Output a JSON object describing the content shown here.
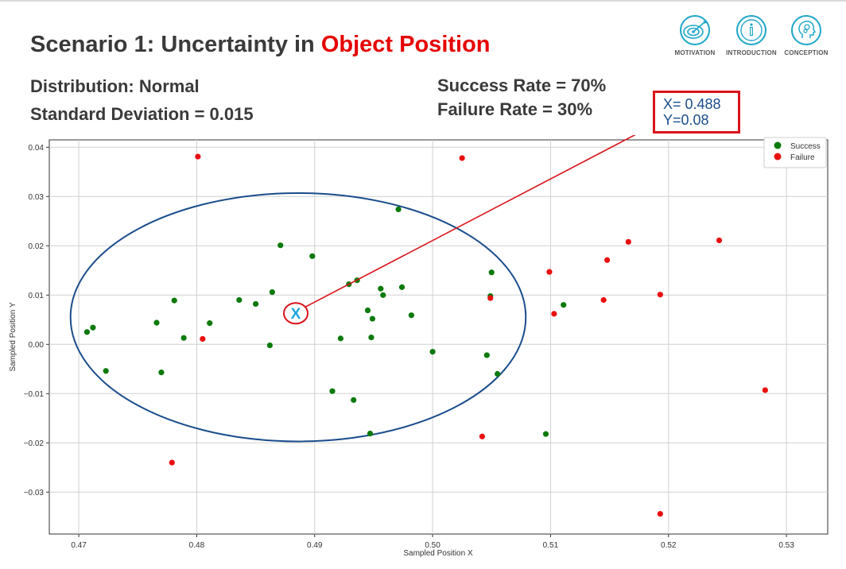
{
  "header": {
    "title_prefix": "Scenario 1: Uncertainty in ",
    "title_accent": "Object Position",
    "accent_color": "#e60000"
  },
  "info": {
    "distribution": "Distribution: Normal",
    "std_dev": "Standard Deviation = 0.015",
    "success_rate": "Success Rate = 70%",
    "failure_rate": "Failure Rate = 30%"
  },
  "nav": {
    "items": [
      {
        "label": "MOTIVATION",
        "icon": "target-icon"
      },
      {
        "label": "INTRODUCTION",
        "icon": "info-icon"
      },
      {
        "label": "CONCEPTION",
        "icon": "head-gears-icon"
      }
    ],
    "icon_color": "#1ea7c9"
  },
  "callout": {
    "x_text": "X= 0.488",
    "y_text": "Y=0.08",
    "marker": "X",
    "box_color": "#d9141b",
    "marker_color": "#1ea7e0"
  },
  "chart_data": {
    "type": "scatter",
    "xlabel": "Sampled Position X",
    "ylabel": "Sampled Position Y",
    "xlim": [
      0.4675,
      0.5335
    ],
    "ylim": [
      -0.0385,
      0.0415
    ],
    "xticks": [
      0.47,
      0.48,
      0.49,
      0.5,
      0.51,
      0.52,
      0.53
    ],
    "xtick_labels": [
      "0.47",
      "0.48",
      "0.49",
      "0.50",
      "0.51",
      "0.52",
      "0.53"
    ],
    "yticks": [
      0.04,
      0.03,
      0.02,
      0.01,
      0.0,
      -0.01,
      -0.02,
      -0.03
    ],
    "ytick_labels": [
      "0.04",
      "0.03",
      "0.02",
      "0.01",
      "0.00",
      "−0.01",
      "−0.02",
      "−0.03"
    ],
    "grid": true,
    "legend_position": "top-right",
    "ellipse": {
      "cx": 0.4886,
      "cy": 0.0055,
      "rx": 0.0193,
      "ry": 0.0252,
      "color": "#1a4d8c"
    },
    "series": [
      {
        "name": "Success",
        "color": "#0a7a0a",
        "points": [
          [
            0.4707,
            0.0025
          ],
          [
            0.4712,
            0.0034
          ],
          [
            0.4723,
            -0.0054
          ],
          [
            0.4766,
            0.0044
          ],
          [
            0.477,
            -0.0057
          ],
          [
            0.4781,
            0.0089
          ],
          [
            0.4789,
            0.0013
          ],
          [
            0.4811,
            0.0043
          ],
          [
            0.4836,
            0.009
          ],
          [
            0.485,
            0.0082
          ],
          [
            0.4862,
            -0.0002
          ],
          [
            0.4864,
            0.0106
          ],
          [
            0.4871,
            0.0201
          ],
          [
            0.4898,
            0.0179
          ],
          [
            0.4915,
            -0.0095
          ],
          [
            0.4922,
            0.0012
          ],
          [
            0.4929,
            0.0122
          ],
          [
            0.4933,
            -0.0113
          ],
          [
            0.4936,
            0.013
          ],
          [
            0.4945,
            0.0069
          ],
          [
            0.4947,
            -0.0181
          ],
          [
            0.4948,
            0.0014
          ],
          [
            0.4949,
            0.0052
          ],
          [
            0.4956,
            0.0113
          ],
          [
            0.4958,
            0.01
          ],
          [
            0.4971,
            0.0274
          ],
          [
            0.4974,
            0.0116
          ],
          [
            0.4982,
            0.0059
          ],
          [
            0.5,
            -0.0015
          ],
          [
            0.5046,
            -0.0022
          ],
          [
            0.5049,
            0.0098
          ],
          [
            0.505,
            0.0146
          ],
          [
            0.5055,
            -0.006
          ],
          [
            0.5096,
            -0.0182
          ],
          [
            0.5111,
            0.008
          ]
        ]
      },
      {
        "name": "Failure",
        "color": "#e8100f",
        "points": [
          [
            0.4801,
            0.0381
          ],
          [
            0.4805,
            0.0011
          ],
          [
            0.4779,
            -0.024
          ],
          [
            0.5025,
            0.0378
          ],
          [
            0.5042,
            -0.0187
          ],
          [
            0.5049,
            0.0094
          ],
          [
            0.5099,
            0.0147
          ],
          [
            0.5103,
            0.0062
          ],
          [
            0.5145,
            0.009
          ],
          [
            0.5148,
            0.0171
          ],
          [
            0.5166,
            0.0208
          ],
          [
            0.5193,
            0.0101
          ],
          [
            0.5193,
            -0.0344
          ],
          [
            0.5243,
            0.0211
          ],
          [
            0.5282,
            -0.0093
          ]
        ]
      }
    ]
  }
}
